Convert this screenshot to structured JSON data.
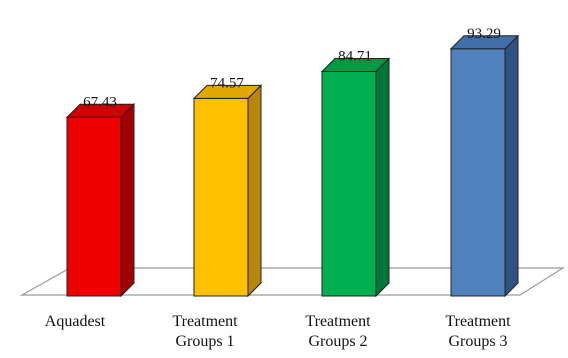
{
  "chart_data": {
    "type": "bar",
    "title": "",
    "xlabel": "",
    "ylabel": "",
    "ylim": [
      0,
      100
    ],
    "grid": false,
    "legend": "none",
    "style": "3d-column",
    "categories": [
      [
        "Aquadest"
      ],
      [
        "Treatment",
        "Groups 1"
      ],
      [
        "Treatment",
        "Groups 2"
      ],
      [
        "Treatment",
        "Groups 3"
      ]
    ],
    "values": [
      67.43,
      74.57,
      84.71,
      93.29
    ],
    "value_labels": [
      "67.43",
      "74.57",
      "84.71",
      "93.29"
    ],
    "colors": {
      "front": [
        "#ee0000",
        "#ffc000",
        "#00b050",
        "#4f81bd"
      ],
      "side": [
        "#a00000",
        "#b8860b",
        "#00773a",
        "#2f5280"
      ],
      "top": [
        "#cc0000",
        "#e0a800",
        "#009a45",
        "#3f6ea8"
      ],
      "floor_stroke": "#9a9a9a",
      "bar_stroke": "#222222"
    }
  }
}
